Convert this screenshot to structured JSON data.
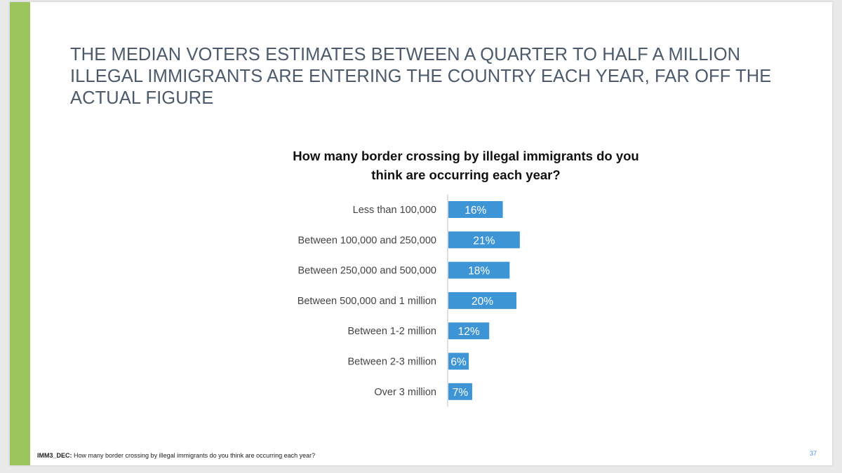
{
  "slide": {
    "headline": "THE MEDIAN VOTERS ESTIMATES BETWEEN A QUARTER TO HALF A MILLION ILLEGAL IMMIGRANTS ARE ENTERING THE COUNTRY EACH YEAR, FAR OFF THE ACTUAL FIGURE",
    "accent_color": "#9dc55e",
    "footnote_code": "IMM3_DEC:",
    "footnote_text": " How many border crossing by illegal immigrants do you think are occurring each year?",
    "page_number": "37"
  },
  "chart_data": {
    "type": "bar",
    "orientation": "horizontal",
    "title": "How many border crossing by illegal immigrants do you think are occurring each year?",
    "categories": [
      "Less than 100,000",
      "Between 100,000 and 250,000",
      "Between 250,000 and 500,000",
      "Between 500,000 and 1 million",
      "Between 1-2 million",
      "Between 2-3 million",
      "Over 3 million"
    ],
    "values": [
      16,
      21,
      18,
      20,
      12,
      6,
      7
    ],
    "value_labels": [
      "16%",
      "21%",
      "18%",
      "20%",
      "12%",
      "6%",
      "7%"
    ],
    "bar_color": "#3d95d6",
    "axis_color": "#bfbfbf",
    "grid": false,
    "legend": "none"
  }
}
